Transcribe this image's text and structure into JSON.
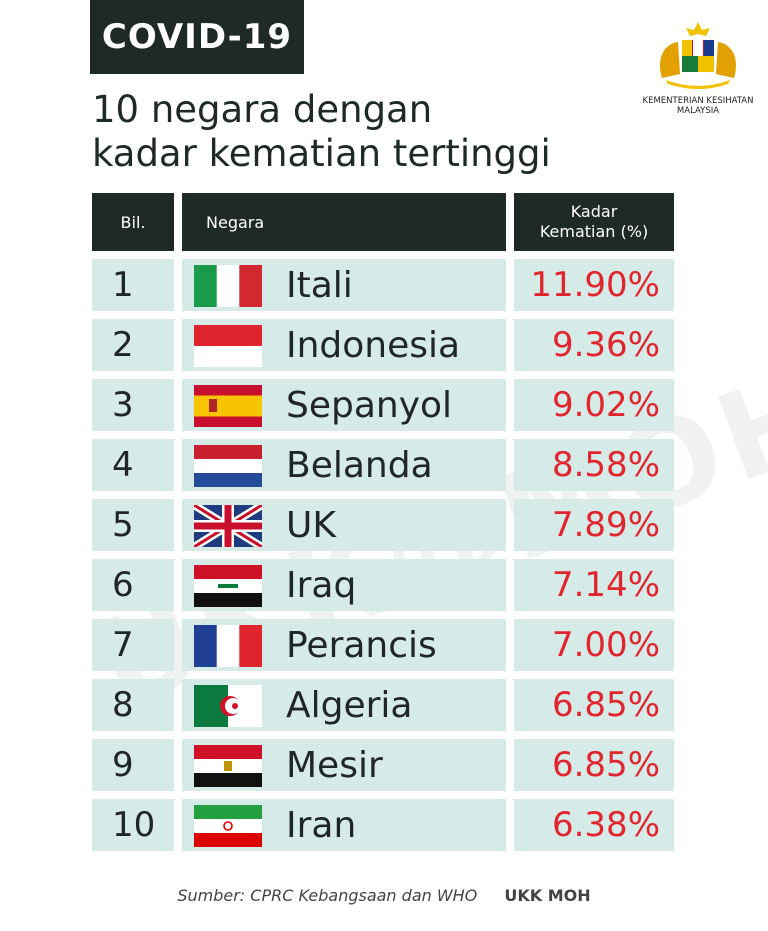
{
  "tag": "COVID-19",
  "headline": [
    "10 negara dengan",
    "kadar kematian tertinggi"
  ],
  "ministry": [
    "KEMENTERIAN KESIHATAN",
    "MALAYSIA"
  ],
  "table": {
    "headers": {
      "bil": "Bil.",
      "negara": "Negara",
      "kadar": [
        "Kadar",
        "Kematian (%)"
      ]
    },
    "rows": [
      {
        "bil": "1",
        "negara": "Itali",
        "kadar": "11.90%",
        "flag": "italy-flag"
      },
      {
        "bil": "2",
        "negara": "Indonesia",
        "kadar": "9.36%",
        "flag": "indonesia-flag"
      },
      {
        "bil": "3",
        "negara": "Sepanyol",
        "kadar": "9.02%",
        "flag": "spain-flag"
      },
      {
        "bil": "4",
        "negara": "Belanda",
        "kadar": "8.58%",
        "flag": "netherlands-flag"
      },
      {
        "bil": "5",
        "negara": "UK",
        "kadar": "7.89%",
        "flag": "uk-flag"
      },
      {
        "bil": "6",
        "negara": "Iraq",
        "kadar": "7.14%",
        "flag": "iraq-flag"
      },
      {
        "bil": "7",
        "negara": "Perancis",
        "kadar": "7.00%",
        "flag": "france-flag"
      },
      {
        "bil": "8",
        "negara": "Algeria",
        "kadar": "6.85%",
        "flag": "algeria-flag"
      },
      {
        "bil": "9",
        "negara": "Mesir",
        "kadar": "6.85%",
        "flag": "egypt-flag"
      },
      {
        "bil": "10",
        "negara": "Iran",
        "kadar": "6.38%",
        "flag": "iran-flag"
      }
    ]
  },
  "watermark": "UKK@MOH",
  "footer": {
    "source": "Sumber: CPRC Kebangsaan dan WHO",
    "org": "UKK MOH"
  },
  "colors": {
    "dark": "#1f2a28",
    "row_bg": "#d6ebe8",
    "rate": "#e1252f"
  }
}
